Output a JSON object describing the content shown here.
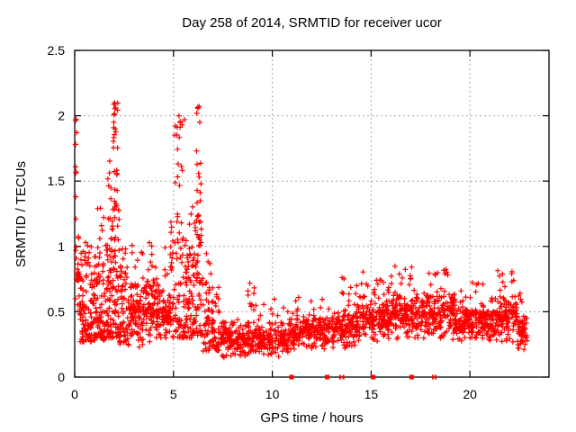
{
  "page": {
    "background": "#ffffff"
  },
  "chart_data": {
    "type": "scatter",
    "title": "Day 258 of 2014, SRMTID for receiver ucor",
    "xlabel": "GPS time / hours",
    "ylabel": "SRMTID / TECUs",
    "xlim": [
      0,
      24
    ],
    "ylim": [
      0,
      2.5
    ],
    "xticks": [
      0,
      5,
      10,
      15,
      20
    ],
    "yticks": [
      0,
      0.5,
      1,
      1.5,
      2,
      2.5
    ],
    "grid": {
      "show": true,
      "color": "#a6a6a6",
      "style": "dotted"
    },
    "axis_color": "#000000",
    "legend": "none",
    "marker": {
      "shape": "plus",
      "color": "#ff0000",
      "size": 6,
      "stroke_width": 1.2
    },
    "data_time_span_hours": [
      0.03,
      22.9
    ],
    "scatter_envelope": {
      "seed": 20140258,
      "segments": [
        {
          "t": [
            0.03,
            0.25
          ],
          "n": 24,
          "band": [
            0.5,
            1.1
          ],
          "dist": "low",
          "tail": {
            "n": 6,
            "range": [
              1.15,
              2.0
            ],
            "x": 0.08,
            "xw": 0.1
          }
        },
        {
          "t": [
            0.25,
            1.0
          ],
          "n": 105,
          "band": [
            0.27,
            0.95
          ],
          "dist": "low",
          "tail": {
            "n": 5,
            "range": [
              0.95,
              1.08
            ],
            "x": 0.6,
            "xw": 0.5
          }
        },
        {
          "t": [
            1.0,
            1.55
          ],
          "n": 80,
          "band": [
            0.28,
            0.95
          ],
          "dist": "low",
          "tail": {
            "n": 7,
            "range": [
              0.95,
              1.3
            ],
            "x": 1.3,
            "xw": 0.4
          }
        },
        {
          "t": [
            1.55,
            1.9
          ],
          "n": 58,
          "band": [
            0.3,
            1.2
          ],
          "dist": "low",
          "tail": {
            "n": 8,
            "range": [
              1.2,
              1.75
            ],
            "x": 1.8,
            "xw": 0.25
          }
        },
        {
          "t": [
            1.9,
            2.25
          ],
          "n": 62,
          "band": [
            0.3,
            1.35
          ],
          "dist": "low",
          "tail": {
            "n": 20,
            "range": [
              1.35,
              2.1
            ],
            "x": 2.05,
            "xw": 0.28
          }
        },
        {
          "t": [
            2.25,
            2.7
          ],
          "n": 56,
          "band": [
            0.25,
            0.85
          ],
          "dist": "low",
          "tail": {
            "n": 4,
            "range": [
              0.85,
              1.1
            ],
            "x": 2.5,
            "xw": 0.3
          }
        },
        {
          "t": [
            2.7,
            3.6
          ],
          "n": 105,
          "band": [
            0.2,
            0.78
          ],
          "dist": "tri",
          "tail": {
            "n": 6,
            "range": [
              0.78,
              1.03
            ],
            "x": 3.1,
            "xw": 0.7
          }
        },
        {
          "t": [
            3.6,
            4.4
          ],
          "n": 95,
          "band": [
            0.25,
            0.82
          ],
          "dist": "tri",
          "tail": {
            "n": 7,
            "range": [
              0.82,
              1.05
            ],
            "x": 3.95,
            "xw": 0.5
          }
        },
        {
          "t": [
            4.4,
            4.85
          ],
          "n": 55,
          "band": [
            0.25,
            0.72
          ],
          "dist": "tri",
          "tail": {
            "n": 5,
            "range": [
              0.72,
              1.0
            ],
            "x": 4.7,
            "xw": 0.3
          }
        },
        {
          "t": [
            4.85,
            5.65
          ],
          "n": 88,
          "band": [
            0.3,
            1.25
          ],
          "dist": "low",
          "tail": {
            "n": 16,
            "range": [
              1.3,
              2.0
            ],
            "x": 5.25,
            "xw": 0.4
          }
        },
        {
          "t": [
            5.65,
            6.05
          ],
          "n": 52,
          "band": [
            0.3,
            0.95
          ],
          "dist": "low",
          "tail": {
            "n": 5,
            "range": [
              0.95,
              1.35
            ],
            "x": 5.85,
            "xw": 0.3
          }
        },
        {
          "t": [
            6.05,
            6.5
          ],
          "n": 58,
          "band": [
            0.32,
            1.25
          ],
          "dist": "low",
          "tail": {
            "n": 13,
            "range": [
              1.25,
              2.07
            ],
            "x": 6.28,
            "xw": 0.24
          }
        },
        {
          "t": [
            6.5,
            7.3
          ],
          "n": 85,
          "band": [
            0.2,
            0.72
          ],
          "dist": "low",
          "tail": {
            "n": 5,
            "range": [
              0.72,
              0.95
            ],
            "x": 6.7,
            "xw": 0.4
          }
        },
        {
          "t": [
            7.3,
            9.1
          ],
          "n": 175,
          "band": [
            0.13,
            0.45
          ],
          "dist": "tri",
          "tail": {
            "n": 10,
            "range": [
              0.45,
              0.72
            ],
            "x": 9.0,
            "xw": 0.5
          }
        },
        {
          "t": [
            9.1,
            10.9
          ],
          "n": 170,
          "band": [
            0.15,
            0.45
          ],
          "dist": "tri",
          "tail": {
            "n": 8,
            "range": [
              0.45,
              0.6
            ],
            "x": 10.1,
            "xw": 1.5
          }
        },
        {
          "t": [
            10.9,
            12.7
          ],
          "n": 170,
          "band": [
            0.2,
            0.5
          ],
          "dist": "tri",
          "tail": {
            "n": 8,
            "range": [
              0.5,
              0.62
            ],
            "x": 11.8,
            "xw": 1.5
          }
        },
        {
          "t": [
            12.7,
            14.3
          ],
          "n": 160,
          "band": [
            0.2,
            0.55
          ],
          "dist": "tri",
          "tail": {
            "n": 10,
            "range": [
              0.55,
              0.77
            ],
            "x": 13.9,
            "xw": 0.8
          }
        },
        {
          "t": [
            14.3,
            16.1
          ],
          "n": 180,
          "band": [
            0.25,
            0.66
          ],
          "dist": "tri",
          "tail": {
            "n": 12,
            "range": [
              0.66,
              0.82
            ],
            "x": 15.2,
            "xw": 1.4
          }
        },
        {
          "t": [
            16.1,
            17.7
          ],
          "n": 160,
          "band": [
            0.28,
            0.68
          ],
          "dist": "tri",
          "tail": {
            "n": 12,
            "range": [
              0.68,
              0.86
            ],
            "x": 16.6,
            "xw": 1.2
          }
        },
        {
          "t": [
            17.7,
            19.3
          ],
          "n": 160,
          "band": [
            0.28,
            0.7
          ],
          "dist": "tri",
          "tail": {
            "n": 10,
            "range": [
              0.7,
              0.88
            ],
            "x": 18.4,
            "xw": 1.0
          }
        },
        {
          "t": [
            19.3,
            21.1
          ],
          "n": 170,
          "band": [
            0.25,
            0.6
          ],
          "dist": "tri",
          "tail": {
            "n": 8,
            "range": [
              0.6,
              0.78
            ],
            "x": 20.2,
            "xw": 1.4
          }
        },
        {
          "t": [
            21.1,
            22.4
          ],
          "n": 130,
          "band": [
            0.22,
            0.66
          ],
          "dist": "tri",
          "tail": {
            "n": 10,
            "range": [
              0.66,
              0.82
            ],
            "x": 21.8,
            "xw": 0.9
          }
        },
        {
          "t": [
            22.4,
            22.9
          ],
          "n": 55,
          "band": [
            0.18,
            0.52
          ],
          "dist": "tri",
          "tail": {
            "n": 4,
            "range": [
              0.52,
              0.66
            ],
            "x": 22.6,
            "xw": 0.3
          }
        }
      ]
    },
    "notable_peaks": [
      {
        "x": 2.02,
        "y": 2.1
      },
      {
        "x": 2.07,
        "y": 2.06
      },
      {
        "x": 1.98,
        "y": 1.95
      },
      {
        "x": 5.28,
        "y": 2.0
      },
      {
        "x": 5.55,
        "y": 1.97
      },
      {
        "x": 6.3,
        "y": 2.07
      },
      {
        "x": 6.33,
        "y": 1.95
      },
      {
        "x": 0.06,
        "y": 1.97
      },
      {
        "x": 0.05,
        "y": 1.78
      },
      {
        "x": 0.07,
        "y": 1.57
      },
      {
        "x": 0.05,
        "y": 1.38
      },
      {
        "x": 0.06,
        "y": 1.21
      }
    ],
    "zero_flag_squares": {
      "color": "#ff0000",
      "height": 5,
      "items": [
        {
          "x": 10.97,
          "w": 5
        },
        {
          "x": 12.78,
          "w": 5
        },
        {
          "x": 13.43,
          "w": 2
        },
        {
          "x": 13.6,
          "w": 2
        },
        {
          "x": 15.1,
          "w": 5
        },
        {
          "x": 17.05,
          "w": 5
        },
        {
          "x": 18.12,
          "w": 2
        },
        {
          "x": 18.26,
          "w": 2
        }
      ]
    }
  }
}
